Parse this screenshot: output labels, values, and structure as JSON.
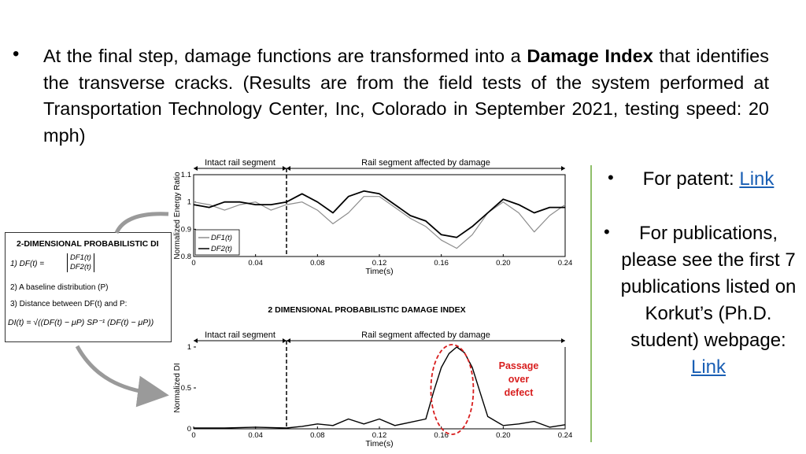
{
  "main": {
    "bullet": "•",
    "text_before": "At the final step, damage functions are transformed into a ",
    "bold": "Damage Index",
    "text_after": " that identifies the transverse cracks. (Results are from the field tests of the system performed at Transportation Technology Center, Inc, Colorado in September 2021, testing speed: 20 mph)"
  },
  "side": {
    "patent_label": "For patent: ",
    "patent_link": "Link",
    "pub_text": "For publications, please see the first 7 publications listed on Korkut’s (Ph.D. student) webpage: ",
    "pub_link": "Link",
    "bullet": "•"
  },
  "di_box": {
    "title": "2-DIMENSIONAL PROBABILISTIC DI",
    "item1_prefix": "1) DF(t) =",
    "item1_vec_a": "DF1(t)",
    "item1_vec_b": "DF2(t)",
    "item2": "2)   A baseline distribution (P)",
    "item3": "3)   Distance between DF(t) and P:",
    "formula": "DI(t) = √((DF(t) − μP) SP⁻¹ (DF(t) − μP))"
  },
  "top_chart": {
    "region_intact": "Intact rail segment",
    "region_damage": "Rail segment affected by damage",
    "ylabel": "Normalized Energy Ratio",
    "xlabel": "Time(s)",
    "legend": [
      "DF1(t)",
      "DF2(t)"
    ]
  },
  "bottom_chart": {
    "title": "2 DIMENSIONAL PROBABILISTIC DAMAGE INDEX",
    "region_intact": "Intact rail segment",
    "region_damage": "Rail segment affected by damage",
    "ylabel": "Normalized DI",
    "xlabel": "Time(s)",
    "annotation": [
      "Passage",
      "over",
      "defect"
    ]
  },
  "chart_data": [
    {
      "type": "line",
      "xlabel": "Time(s)",
      "ylabel": "Normalized Energy Ratio",
      "xlim": [
        0,
        0.24
      ],
      "ylim": [
        0.8,
        1.1
      ],
      "x_ticks": [
        "0",
        "0.04",
        "0.08",
        "0.12",
        "0.16",
        "0.20",
        "0.24"
      ],
      "y_ticks": [
        "0.8",
        "0.9",
        "1",
        "1.1"
      ],
      "x": [
        0,
        0.01,
        0.02,
        0.03,
        0.04,
        0.05,
        0.06,
        0.07,
        0.08,
        0.09,
        0.1,
        0.11,
        0.12,
        0.13,
        0.14,
        0.15,
        0.16,
        0.17,
        0.18,
        0.19,
        0.2,
        0.21,
        0.22,
        0.23,
        0.24
      ],
      "series": [
        {
          "name": "DF1(t)",
          "values": [
            1.0,
            0.99,
            0.97,
            0.99,
            1.0,
            0.97,
            0.99,
            1.0,
            0.97,
            0.92,
            0.96,
            1.02,
            1.02,
            0.98,
            0.94,
            0.91,
            0.86,
            0.83,
            0.88,
            0.96,
            1.0,
            0.96,
            0.89,
            0.95,
            0.99
          ]
        },
        {
          "name": "DF2(t)",
          "values": [
            0.99,
            0.98,
            1.0,
            1.0,
            0.99,
            0.99,
            1.0,
            1.03,
            1.0,
            0.96,
            1.02,
            1.04,
            1.03,
            0.99,
            0.95,
            0.93,
            0.88,
            0.87,
            0.91,
            0.96,
            1.01,
            0.99,
            0.96,
            0.98,
            0.98
          ]
        }
      ]
    },
    {
      "type": "line",
      "title": "2 DIMENSIONAL PROBABILISTIC DAMAGE INDEX",
      "xlabel": "Time(s)",
      "ylabel": "Normalized DI",
      "xlim": [
        0,
        0.24
      ],
      "ylim": [
        0,
        1
      ],
      "x_ticks": [
        "0",
        "0.04",
        "0.08",
        "0.12",
        "0.16",
        "0.20",
        "0.24"
      ],
      "y_ticks": [
        "0",
        "0.5",
        "1"
      ],
      "x": [
        0,
        0.02,
        0.04,
        0.06,
        0.07,
        0.08,
        0.09,
        0.1,
        0.11,
        0.12,
        0.13,
        0.14,
        0.15,
        0.155,
        0.16,
        0.165,
        0.17,
        0.175,
        0.18,
        0.185,
        0.19,
        0.2,
        0.21,
        0.22,
        0.23,
        0.24
      ],
      "series": [
        {
          "name": "DI",
          "values": [
            0.01,
            0.01,
            0.02,
            0.01,
            0.03,
            0.06,
            0.04,
            0.12,
            0.06,
            0.12,
            0.04,
            0.08,
            0.12,
            0.45,
            0.75,
            0.92,
            1.0,
            0.93,
            0.75,
            0.45,
            0.15,
            0.04,
            0.06,
            0.09,
            0.02,
            0.05
          ]
        }
      ]
    }
  ]
}
